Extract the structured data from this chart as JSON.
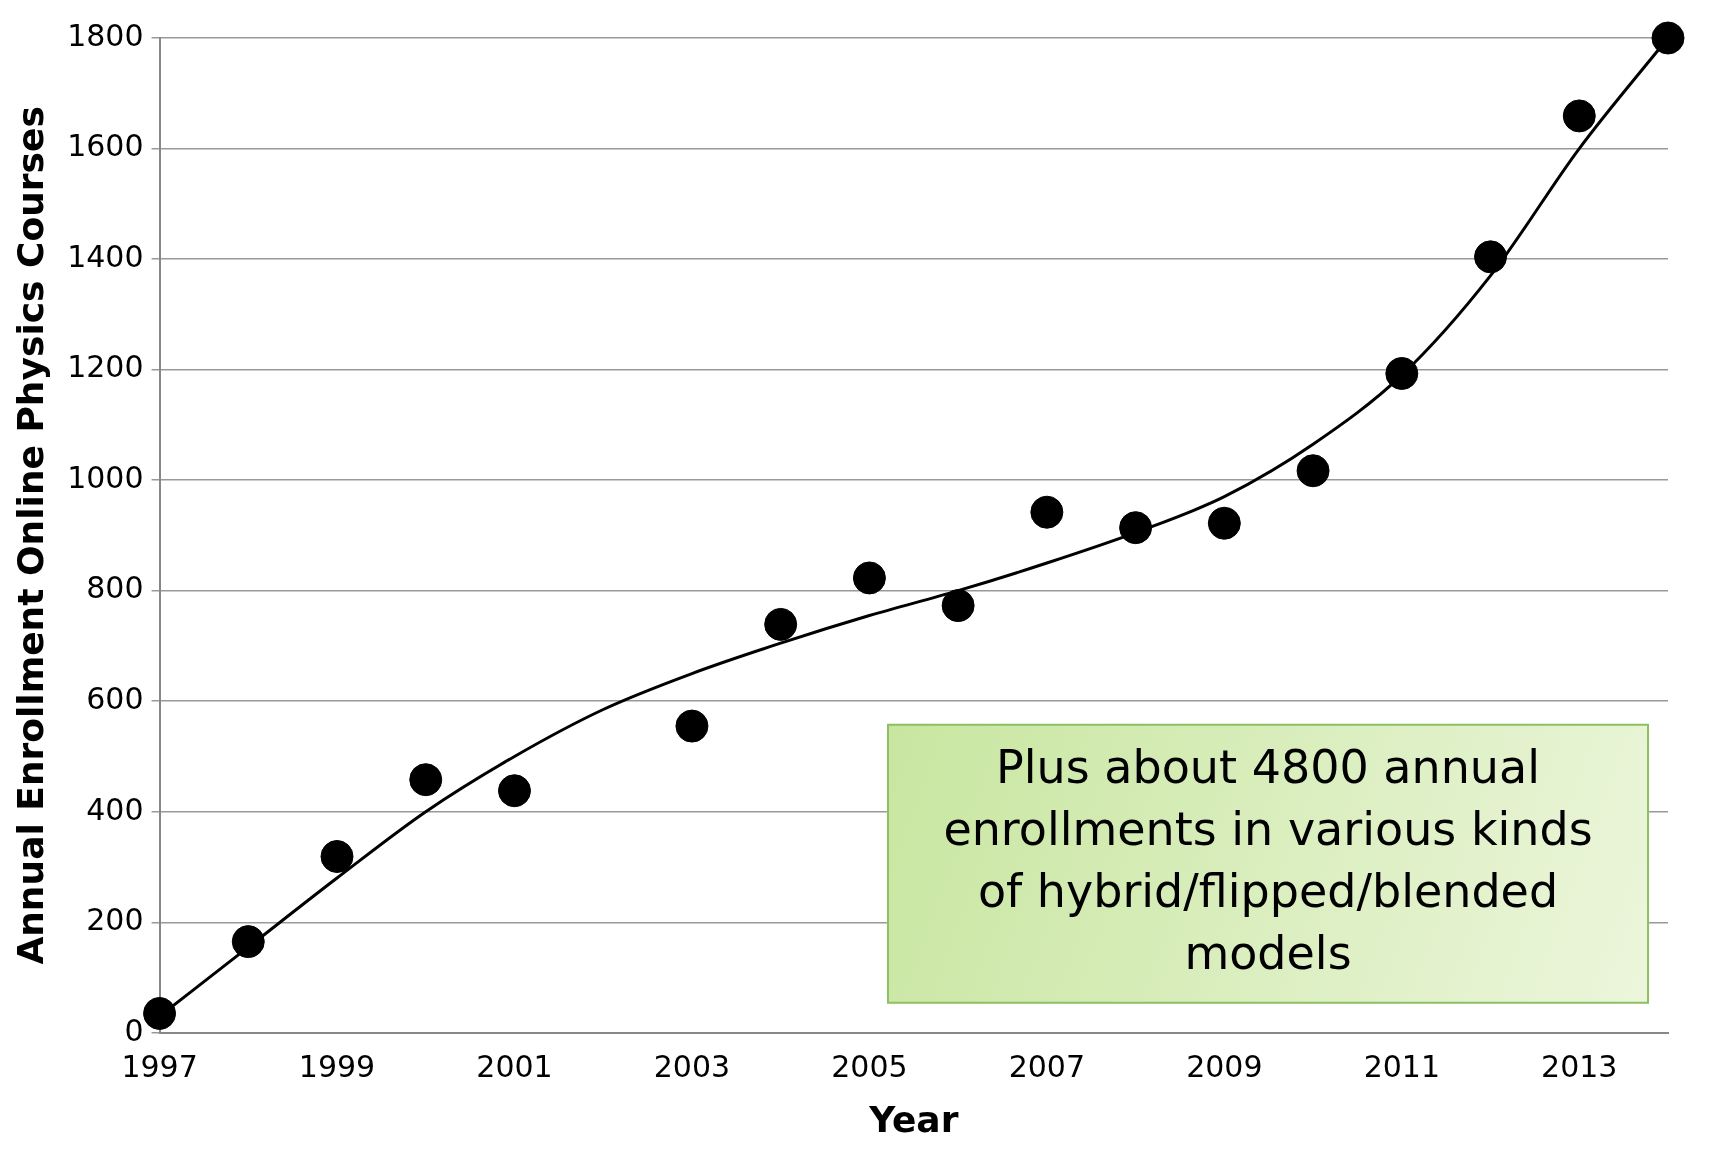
{
  "chart_data": {
    "type": "scatter",
    "xlabel": "Year",
    "ylabel": "Annual Enrollment Online Physics Courses",
    "xlim": [
      1997,
      2014
    ],
    "xticks": [
      1997,
      1999,
      2001,
      2003,
      2005,
      2007,
      2009,
      2011,
      2013
    ],
    "ylim": [
      0,
      1800
    ],
    "yticks": [
      0,
      200,
      400,
      600,
      800,
      1000,
      1200,
      1400,
      1600,
      1800
    ],
    "grid": "y",
    "legend": false,
    "marker": "circle",
    "series": [
      {
        "type": "scatter",
        "color": "#000000",
        "x": [
          1997,
          1998,
          1999,
          2000,
          2001,
          2003,
          2004,
          2005,
          2006,
          2007,
          2008,
          2009,
          2010,
          2011,
          2012,
          2013,
          2014
        ],
        "values": [
          35,
          165,
          319,
          458,
          438,
          555,
          739,
          823,
          773,
          942,
          914,
          922,
          1017,
          1193,
          1404,
          1659,
          1800
        ]
      },
      {
        "type": "line",
        "color": "#000000",
        "marker": "none",
        "x": [
          1997,
          1998,
          1999,
          2000,
          2001,
          2002,
          2003,
          2004,
          2005,
          2006,
          2007,
          2008,
          2009,
          2010,
          2011,
          2012,
          2013,
          2014
        ],
        "values": [
          30,
          155,
          280,
          400,
          500,
          585,
          650,
          705,
          755,
          800,
          850,
          905,
          970,
          1065,
          1190,
          1370,
          1600,
          1800
        ]
      }
    ],
    "annotations": [
      "Plus about 4800 annual enrollments in various kinds of hybrid/flipped/blended models"
    ]
  }
}
